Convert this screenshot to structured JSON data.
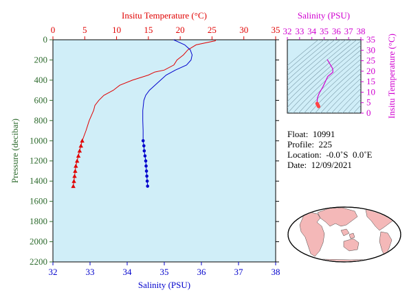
{
  "chart_data": [
    {
      "type": "line",
      "top_axis_label": "Insitu Temperature (°C)",
      "bottom_axis_label": "Salinity (PSU)",
      "ylabel": "Pressure (decibar)",
      "temp_range": [
        0,
        35
      ],
      "sal_range": [
        32,
        38
      ],
      "ylim": [
        0,
        2200
      ],
      "temp_ticks": [
        "0",
        "5",
        "10",
        "15",
        "20",
        "25",
        "30",
        "35"
      ],
      "sal_ticks": [
        "32",
        "33",
        "34",
        "35",
        "36",
        "37",
        "38"
      ],
      "y_ticks": [
        "0",
        "200",
        "400",
        "600",
        "800",
        "1000",
        "1200",
        "1400",
        "1600",
        "1800",
        "2000",
        "2200"
      ],
      "colors": {
        "temperature": "#e00000",
        "salinity": "#0000cc",
        "plot_bg": "#d0eef8"
      },
      "temperature": {
        "pressure": [
          0,
          10,
          50,
          100,
          150,
          200,
          250,
          300,
          320,
          350,
          400,
          450,
          500,
          550,
          600,
          650,
          700,
          800,
          900,
          1000,
          1050,
          1100,
          1150,
          1200,
          1250,
          1300,
          1350,
          1400,
          1450
        ],
        "values": [
          25.6,
          25.5,
          22.5,
          21.2,
          20.5,
          19.5,
          19.0,
          17.5,
          16.0,
          15.0,
          12.5,
          10.5,
          9.5,
          8.0,
          7.2,
          6.6,
          6.4,
          5.7,
          5.2,
          4.6,
          4.4,
          4.2,
          4.0,
          3.8,
          3.6,
          3.5,
          3.4,
          3.3,
          3.2
        ],
        "marker_pressure": [
          1000,
          1050,
          1100,
          1150,
          1200,
          1250,
          1300,
          1350,
          1400,
          1450
        ]
      },
      "salinity": {
        "pressure": [
          0,
          50,
          100,
          150,
          200,
          250,
          300,
          350,
          400,
          450,
          500,
          550,
          600,
          700,
          800,
          900,
          1000,
          1050,
          1100,
          1150,
          1200,
          1250,
          1300,
          1350,
          1400,
          1450
        ],
        "values": [
          35.25,
          35.55,
          35.7,
          35.75,
          35.72,
          35.6,
          35.3,
          35.05,
          34.9,
          34.75,
          34.6,
          34.5,
          34.45,
          34.42,
          34.42,
          34.43,
          34.43,
          34.45,
          34.46,
          34.48,
          34.5,
          34.51,
          34.52,
          34.53,
          34.54,
          34.55
        ],
        "marker_pressure": [
          1000,
          1050,
          1100,
          1150,
          1200,
          1250,
          1300,
          1350,
          1400,
          1450
        ]
      }
    },
    {
      "type": "scatter",
      "top_axis_label": "Salinity (PSU)",
      "right_axis_label": "Insitu Temperature (°C)",
      "x_ticks": [
        "32",
        "33",
        "34",
        "35",
        "36",
        "37",
        "38"
      ],
      "y_ticks": [
        "0",
        "5",
        "10",
        "15",
        "20",
        "25",
        "30",
        "35"
      ],
      "xlim": [
        32,
        38
      ],
      "ylim": [
        0,
        35
      ],
      "color": "#ff4444",
      "curve_salinity": [
        35.25,
        35.7,
        35.72,
        35.3,
        34.9,
        34.6,
        34.45,
        34.43,
        34.46,
        34.5,
        34.55
      ],
      "curve_temperature": [
        25.6,
        21.2,
        19.5,
        17.5,
        12.5,
        9.5,
        7.2,
        4.6,
        4.2,
        3.8,
        3.2
      ],
      "marker_salinity": [
        34.43,
        34.46,
        34.5,
        34.55
      ],
      "marker_temperature": [
        4.6,
        4.2,
        3.8,
        3.2
      ]
    }
  ],
  "info": {
    "float_label": "Float:",
    "float_value": "10991",
    "profile_label": "Profile:",
    "profile_value": "225",
    "location_label": "Location:",
    "location_value": "-0.0˚S  0.0˚E",
    "date_label": "Date:",
    "date_value": "12/09/2021"
  },
  "map": {
    "ocean_color": "#ffffff",
    "land_color": "#f4b8b8"
  }
}
